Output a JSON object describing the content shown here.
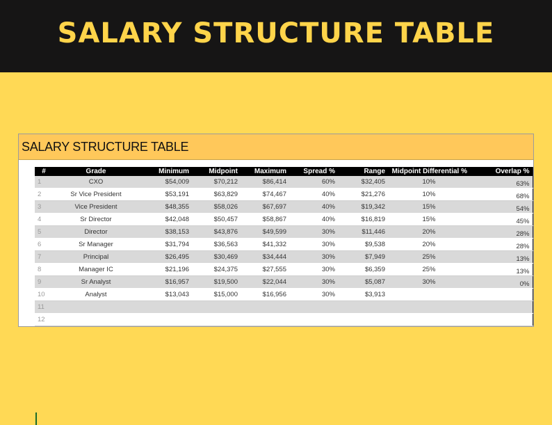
{
  "banner": {
    "title": "SALARY STRUCTURE TABLE"
  },
  "sheet": {
    "title": "SALARY STRUCTURE TABLE"
  },
  "table": {
    "headers": [
      "#",
      "Grade",
      "Minimum",
      "Midpoint",
      "Maximum",
      "Spread %",
      "Range",
      "Midpoint Differential %",
      "Overlap %"
    ],
    "rows": [
      [
        "1",
        "CXO",
        "$54,009",
        "$70,212",
        "$86,414",
        "60%",
        "$32,405",
        "10%",
        "63%"
      ],
      [
        "2",
        "Sr Vice President",
        "$53,191",
        "$63,829",
        "$74,467",
        "40%",
        "$21,276",
        "10%",
        "68%"
      ],
      [
        "3",
        "Vice President",
        "$48,355",
        "$58,026",
        "$67,697",
        "40%",
        "$19,342",
        "15%",
        "54%"
      ],
      [
        "4",
        "Sr Director",
        "$42,048",
        "$50,457",
        "$58,867",
        "40%",
        "$16,819",
        "15%",
        "45%"
      ],
      [
        "5",
        "Director",
        "$38,153",
        "$43,876",
        "$49,599",
        "30%",
        "$11,446",
        "20%",
        "28%"
      ],
      [
        "6",
        "Sr Manager",
        "$31,794",
        "$36,563",
        "$41,332",
        "30%",
        "$9,538",
        "20%",
        "28%"
      ],
      [
        "7",
        "Principal",
        "$26,495",
        "$30,469",
        "$34,444",
        "30%",
        "$7,949",
        "25%",
        "13%"
      ],
      [
        "8",
        "Manager IC",
        "$21,196",
        "$24,375",
        "$27,555",
        "30%",
        "$6,359",
        "25%",
        "13%"
      ],
      [
        "9",
        "Sr Analyst",
        "$16,957",
        "$19,500",
        "$22,044",
        "30%",
        "$5,087",
        "30%",
        "0%"
      ],
      [
        "10",
        "Analyst",
        "$13,043",
        "$15,000",
        "$16,956",
        "30%",
        "$3,913",
        "",
        ""
      ],
      [
        "11",
        "",
        "",
        "",
        "",
        "",
        "",
        "",
        ""
      ],
      [
        "12",
        "",
        "",
        "",
        "",
        "",
        "",
        "",
        ""
      ]
    ]
  }
}
